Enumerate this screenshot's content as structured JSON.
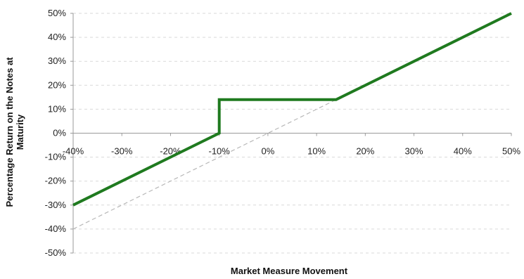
{
  "chart_data": {
    "type": "line",
    "xlabel": "Market Measure Movement",
    "ylabel": "Percentage Return on the Notes at Maturity",
    "xlim": [
      -40,
      50
    ],
    "ylim": [
      -50,
      50
    ],
    "x_ticks": [
      "-40%",
      "-30%",
      "-20%",
      "-10%",
      "0%",
      "10%",
      "20%",
      "30%",
      "40%",
      "50%"
    ],
    "y_ticks": [
      "50%",
      "40%",
      "30%",
      "20%",
      "10%",
      "0%",
      "-10%",
      "-20%",
      "-30%",
      "-40%",
      "-50%"
    ],
    "grid": "horizontal dashed",
    "series": [
      {
        "style": "solid",
        "color": "#1f7a1f",
        "points": [
          [
            -40,
            -30
          ],
          [
            -10,
            0
          ],
          [
            -10,
            14
          ],
          [
            14,
            14
          ],
          [
            50,
            50
          ]
        ]
      },
      {
        "style": "dashed",
        "color": "#b8b8b8",
        "points": [
          [
            -40,
            -40
          ],
          [
            14,
            14
          ]
        ]
      }
    ]
  }
}
